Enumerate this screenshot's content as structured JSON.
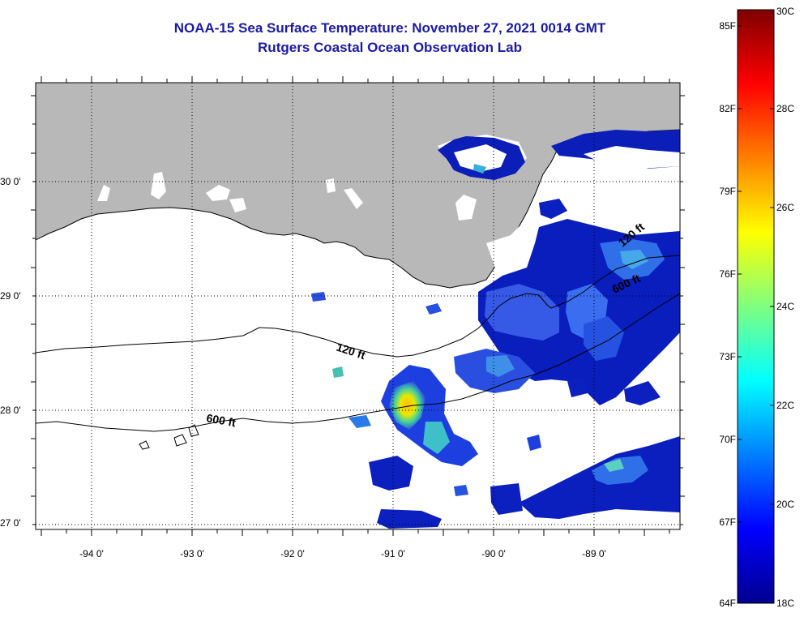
{
  "header": {
    "title": "NOAA-15 Sea Surface Temperature:  November 27, 2021 0014 GMT",
    "subtitle": "Rutgers Coastal Ocean Observation Lab"
  },
  "map": {
    "lon_labels": [
      "-94 0'",
      "-93 0'",
      "-92 0'",
      "-91 0'",
      "-90 0'",
      "-89 0'"
    ],
    "lat_labels": [
      "30 0'",
      "29 0'",
      "28 0'",
      "27 0'"
    ],
    "lon_range": [
      -94.5,
      -88.2
    ],
    "lat_range": [
      26.95,
      30.85
    ],
    "contour_labels": [
      "120 ft",
      "600 ft",
      "120 ft",
      "600 ft"
    ],
    "land_color": "#b8b8b8",
    "cloud_color": "#ffffff"
  },
  "colorbar": {
    "fahrenheit_labels": [
      "85F",
      "82F",
      "79F",
      "76F",
      "73F",
      "70F",
      "67F",
      "64F"
    ],
    "celsius_labels": [
      "30C",
      "28C",
      "26C",
      "24C",
      "22C",
      "20C",
      "18C"
    ],
    "min_c": 18,
    "max_c": 30
  }
}
